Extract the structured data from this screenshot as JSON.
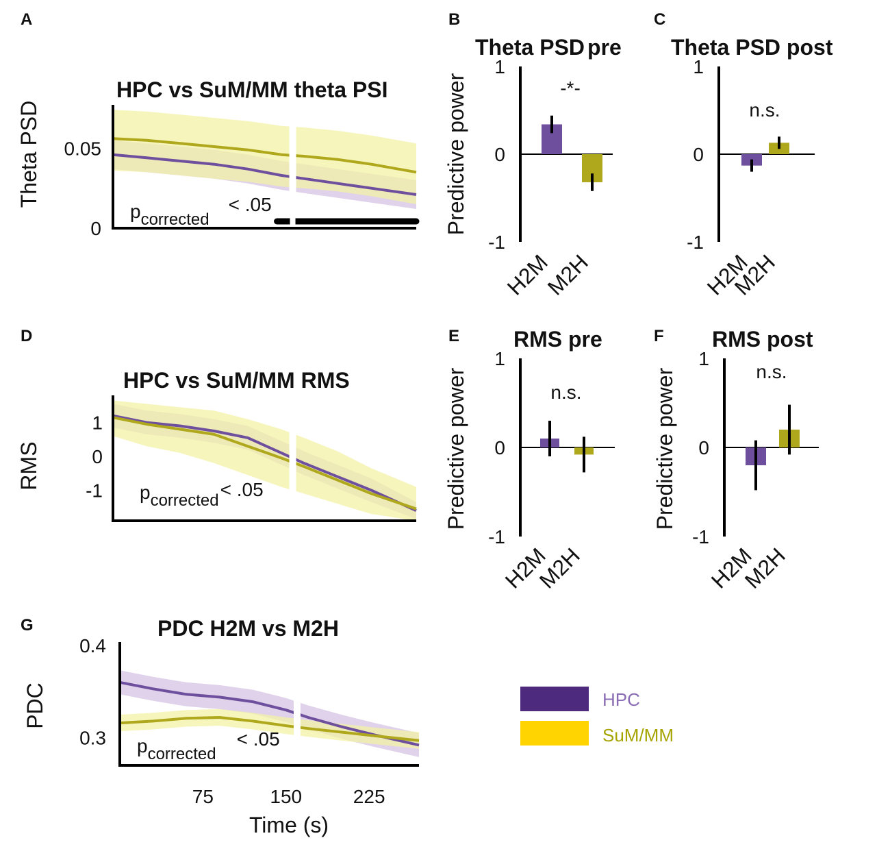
{
  "legend": {
    "items": [
      {
        "label": "HPC",
        "color": "#4e2a7e",
        "text_color": "#8a6cb5"
      },
      {
        "label": "SuM/MM",
        "color": "#ffd400",
        "text_color": "#a6a400"
      }
    ]
  },
  "chart_data": [
    {
      "panel": "A",
      "type": "line",
      "title": "HPC vs SuM/MM theta PSI",
      "ylabel": "Theta PSD",
      "xlabel": "",
      "xlim": [
        0,
        270
      ],
      "ylim": [
        0,
        0.075
      ],
      "yticks": [
        0,
        0.05
      ],
      "ytick_labels": [
        "0",
        "0.05"
      ],
      "gap_at": 160,
      "significance": {
        "label": "p",
        "subscript": "corrected",
        "suffix": "< .05",
        "bar_from": 146,
        "bar_to": 270
      },
      "series": [
        {
          "name": "HPC",
          "color": "#6e4f9e",
          "band": "#d4c3e3",
          "x": [
            0,
            30,
            60,
            90,
            120,
            150,
            170,
            200,
            230,
            270
          ],
          "y": [
            0.046,
            0.044,
            0.042,
            0.04,
            0.037,
            0.033,
            0.031,
            0.028,
            0.025,
            0.021
          ],
          "band_lo": [
            0.037,
            0.035,
            0.033,
            0.031,
            0.028,
            0.024,
            0.022,
            0.019,
            0.016,
            0.012
          ],
          "band_hi": [
            0.055,
            0.053,
            0.051,
            0.049,
            0.046,
            0.042,
            0.04,
            0.037,
            0.034,
            0.03
          ]
        },
        {
          "name": "SuM/MM",
          "color": "#b0a81c",
          "band": "#f3f1a6",
          "x": [
            0,
            30,
            60,
            90,
            120,
            150,
            170,
            200,
            230,
            270
          ],
          "y": [
            0.056,
            0.055,
            0.053,
            0.051,
            0.049,
            0.046,
            0.045,
            0.043,
            0.04,
            0.035
          ],
          "band_lo": [
            0.036,
            0.035,
            0.033,
            0.031,
            0.029,
            0.026,
            0.025,
            0.023,
            0.02,
            0.015
          ],
          "band_hi": [
            0.074,
            0.073,
            0.071,
            0.069,
            0.067,
            0.064,
            0.063,
            0.061,
            0.058,
            0.053
          ]
        }
      ]
    },
    {
      "panel": "B",
      "type": "bar",
      "title": "Theta PSD pre",
      "title_parts": [
        "Theta PSD",
        "pre"
      ],
      "ylabel": "Predictive power",
      "categories": [
        "H2M",
        "M2H"
      ],
      "values": [
        0.34,
        -0.32
      ],
      "errors": [
        0.1,
        0.1
      ],
      "colors": [
        "#6e4f9e",
        "#b0a81c"
      ],
      "ylim": [
        -1,
        1
      ],
      "yticks": [
        -1,
        0,
        1
      ],
      "ytick_labels": [
        "-1",
        "0",
        "1"
      ],
      "annotation": "-*-"
    },
    {
      "panel": "C",
      "type": "bar",
      "title": "Theta PSD post",
      "ylabel": "",
      "categories": [
        "H2M",
        "M2H"
      ],
      "values": [
        -0.13,
        0.13
      ],
      "errors": [
        0.07,
        0.07
      ],
      "colors": [
        "#6e4f9e",
        "#b0a81c"
      ],
      "ylim": [
        -1,
        1
      ],
      "yticks": [
        -1,
        0,
        1
      ],
      "ytick_labels": [
        "-1",
        "0",
        "1"
      ],
      "annotation": "n.s."
    },
    {
      "panel": "D",
      "type": "line",
      "title": "HPC vs SuM/MM RMS",
      "ylabel": "RMS",
      "xlabel": "",
      "xlim": [
        0,
        270
      ],
      "ylim": [
        -1.9,
        1.7
      ],
      "yticks": [
        -1,
        0,
        1
      ],
      "ytick_labels": [
        "-1",
        "0",
        "1"
      ],
      "gap_at": 160,
      "significance": {
        "label": "p",
        "subscript": "corrected",
        "suffix": "< .05"
      },
      "series": [
        {
          "name": "HPC",
          "color": "#6e4f9e",
          "band": "#d4c3e3",
          "x": [
            0,
            30,
            60,
            90,
            120,
            150,
            170,
            200,
            230,
            270
          ],
          "y": [
            1.2,
            1.0,
            0.9,
            0.75,
            0.55,
            0.1,
            -0.2,
            -0.6,
            -1.0,
            -1.6
          ],
          "band_lo": [
            0.85,
            0.65,
            0.55,
            0.4,
            0.2,
            -0.25,
            -0.55,
            -0.95,
            -1.35,
            -1.85
          ],
          "band_hi": [
            1.55,
            1.35,
            1.25,
            1.1,
            0.9,
            0.45,
            0.15,
            -0.25,
            -0.65,
            -1.35
          ]
        },
        {
          "name": "SuM/MM",
          "color": "#b0a81c",
          "band": "#f3f1a6",
          "x": [
            0,
            30,
            60,
            90,
            120,
            150,
            170,
            200,
            230,
            270
          ],
          "y": [
            1.15,
            0.95,
            0.8,
            0.65,
            0.3,
            -0.05,
            -0.3,
            -0.7,
            -1.1,
            -1.55
          ],
          "band_lo": [
            0.6,
            0.3,
            0.1,
            -0.2,
            -0.55,
            -0.9,
            -1.1,
            -1.4,
            -1.7,
            -1.9
          ],
          "band_hi": [
            1.65,
            1.55,
            1.45,
            1.35,
            1.1,
            0.8,
            0.55,
            0.15,
            -0.35,
            -0.9
          ]
        }
      ]
    },
    {
      "panel": "E",
      "type": "bar",
      "title": "RMS pre",
      "ylabel": "Predictive power",
      "categories": [
        "H2M",
        "M2H"
      ],
      "values": [
        0.1,
        -0.08
      ],
      "errors": [
        0.2,
        0.2
      ],
      "colors": [
        "#6e4f9e",
        "#b0a81c"
      ],
      "ylim": [
        -1,
        1
      ],
      "yticks": [
        -1,
        0,
        1
      ],
      "ytick_labels": [
        "-1",
        "0",
        "1"
      ],
      "annotation": "n.s."
    },
    {
      "panel": "F",
      "type": "bar",
      "title": "RMS post",
      "ylabel": "Predictive power",
      "categories": [
        "H2M",
        "M2H"
      ],
      "values": [
        -0.2,
        0.2
      ],
      "errors": [
        0.28,
        0.28
      ],
      "colors": [
        "#6e4f9e",
        "#b0a81c"
      ],
      "ylim": [
        -1,
        1
      ],
      "yticks": [
        -1,
        0,
        1
      ],
      "ytick_labels": [
        "-1",
        "0",
        "1"
      ],
      "annotation": "n.s."
    },
    {
      "panel": "G",
      "type": "line",
      "title": "PDC H2M vs M2H",
      "ylabel": "PDC",
      "xlabel": "Time (s)",
      "xlim": [
        0,
        270
      ],
      "ylim": [
        0.27,
        0.4
      ],
      "yticks": [
        0.3,
        0.4
      ],
      "ytick_labels": [
        "0.3",
        "0.4"
      ],
      "xticks": [
        75,
        150,
        225
      ],
      "xtick_labels": [
        "75",
        "150",
        "225"
      ],
      "gap_at": 160,
      "significance": {
        "label": "p",
        "subscript": "corrected",
        "suffix": "< .05"
      },
      "series": [
        {
          "name": "HPC",
          "color": "#6e4f9e",
          "band": "#d4c3e3",
          "x": [
            0,
            30,
            60,
            90,
            120,
            150,
            170,
            200,
            230,
            270
          ],
          "y": [
            0.36,
            0.353,
            0.347,
            0.344,
            0.339,
            0.33,
            0.322,
            0.312,
            0.303,
            0.292
          ],
          "band_lo": [
            0.347,
            0.34,
            0.334,
            0.331,
            0.326,
            0.317,
            0.309,
            0.299,
            0.29,
            0.279
          ],
          "band_hi": [
            0.373,
            0.366,
            0.36,
            0.357,
            0.352,
            0.343,
            0.335,
            0.325,
            0.316,
            0.305
          ]
        },
        {
          "name": "SuM/MM",
          "color": "#b0a81c",
          "band": "#f3f1a6",
          "x": [
            0,
            30,
            60,
            90,
            120,
            150,
            170,
            200,
            230,
            270
          ],
          "y": [
            0.316,
            0.318,
            0.321,
            0.322,
            0.318,
            0.313,
            0.31,
            0.306,
            0.302,
            0.297
          ],
          "band_lo": [
            0.307,
            0.309,
            0.312,
            0.313,
            0.309,
            0.304,
            0.301,
            0.297,
            0.293,
            0.288
          ],
          "band_hi": [
            0.325,
            0.327,
            0.33,
            0.331,
            0.327,
            0.322,
            0.319,
            0.315,
            0.311,
            0.306
          ]
        }
      ]
    }
  ]
}
